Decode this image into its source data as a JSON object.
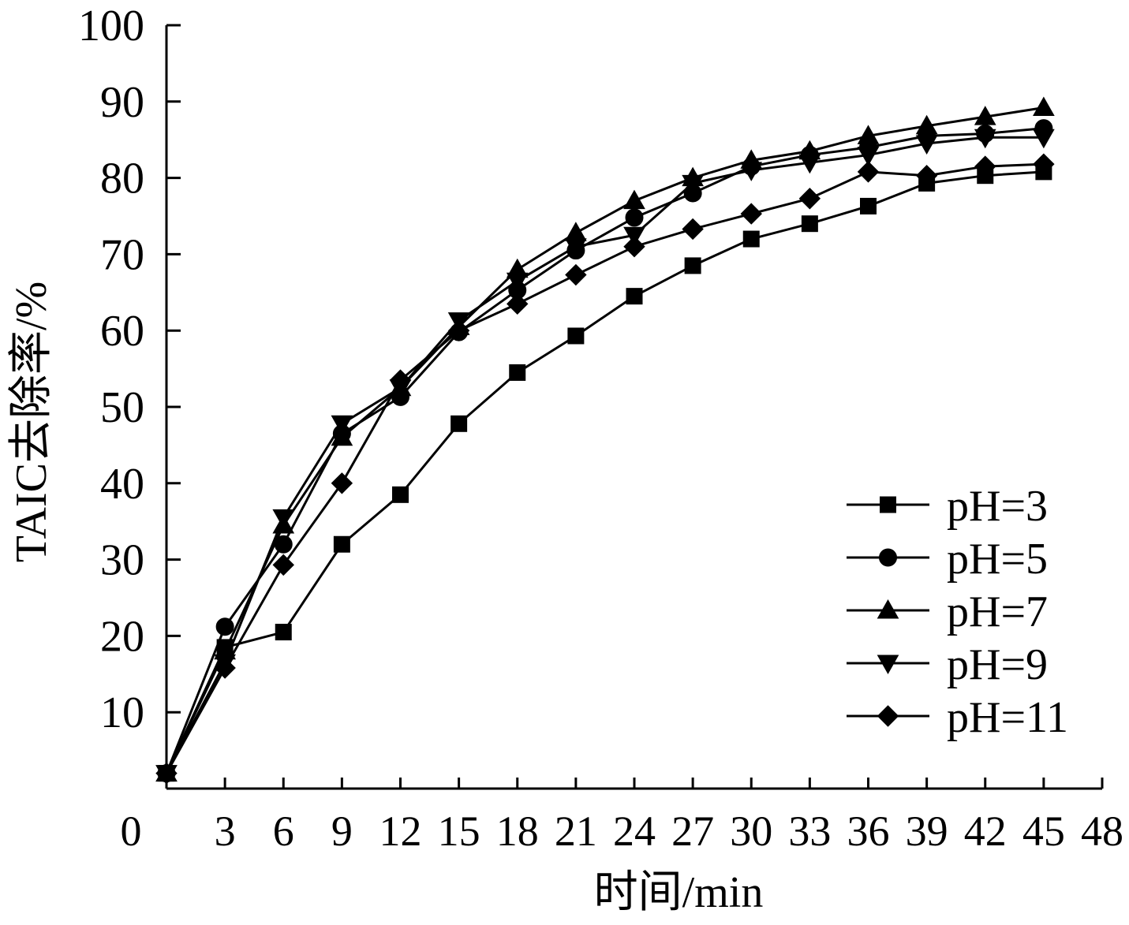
{
  "chart_data": {
    "type": "line",
    "xlabel": "时间/min",
    "ylabel": "TAIC去除率/%",
    "xlim": [
      0,
      48
    ],
    "ylim": [
      0,
      100
    ],
    "x_ticks": [
      "0",
      "3",
      "6",
      "9",
      "12",
      "15",
      "18",
      "21",
      "24",
      "27",
      "30",
      "33",
      "36",
      "39",
      "42",
      "45",
      "48"
    ],
    "y_ticks": [
      "10",
      "20",
      "30",
      "40",
      "50",
      "60",
      "70",
      "80",
      "90",
      "100"
    ],
    "legend_position": "bottom-right",
    "x": [
      0,
      3,
      6,
      9,
      12,
      15,
      18,
      21,
      24,
      27,
      30,
      33,
      36,
      39,
      42,
      45
    ],
    "series": [
      {
        "name": "pH=3",
        "marker": "square",
        "values": [
          2,
          18.5,
          20.5,
          32,
          38.5,
          47.8,
          54.5,
          59.3,
          64.5,
          68.5,
          72,
          74,
          76.3,
          79.3,
          80.3,
          80.8
        ]
      },
      {
        "name": "pH=5",
        "marker": "circle",
        "values": [
          2,
          21.2,
          32,
          46.5,
          51.3,
          59.8,
          65.3,
          70.5,
          74.8,
          78,
          81.5,
          83,
          84,
          85.5,
          85.8,
          86.5
        ]
      },
      {
        "name": "pH=7",
        "marker": "triangle-up",
        "values": [
          2,
          18,
          34.5,
          46,
          52.5,
          60.5,
          68,
          72.8,
          77,
          80,
          82.3,
          83.5,
          85.5,
          86.8,
          88,
          89.2
        ]
      },
      {
        "name": "pH=9",
        "marker": "triangle-down",
        "values": [
          2,
          16.5,
          35.5,
          47.8,
          52.5,
          61.3,
          66.5,
          71,
          72.5,
          79.3,
          81,
          82,
          83,
          84.5,
          85.3,
          85.3
        ]
      },
      {
        "name": "pH=11",
        "marker": "diamond",
        "values": [
          2,
          15.8,
          29.3,
          40,
          53.5,
          60,
          63.5,
          67.3,
          71,
          73.3,
          75.3,
          77.3,
          80.8,
          80.3,
          81.5,
          81.8
        ]
      }
    ]
  }
}
